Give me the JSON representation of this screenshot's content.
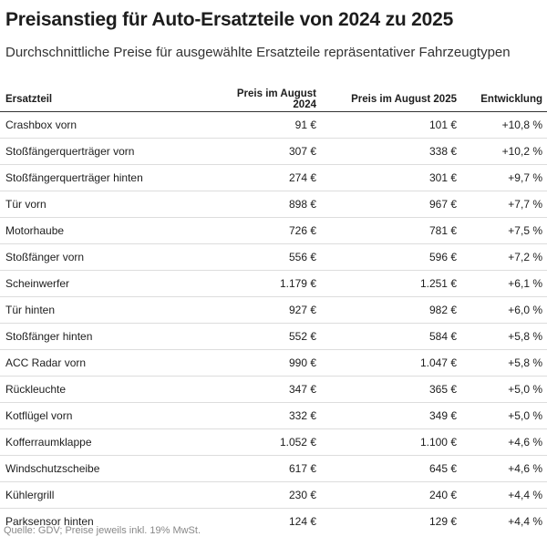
{
  "header": {
    "title": "Preisanstieg für Auto-Ersatzteile von 2024 zu 2025",
    "subtitle": "Durchschnittliche Preise für ausgewählte Ersatzteile repräsentativer Fahrzeugtypen"
  },
  "table": {
    "columns": [
      "Ersatzteil",
      "Preis im August 2024",
      "Preis im August 2025",
      "Entwicklung"
    ],
    "rows": [
      [
        "Crashbox vorn",
        "91 €",
        "101 €",
        "+10,8 %"
      ],
      [
        "Stoßfängerquerträger vorn",
        "307 €",
        "338 €",
        "+10,2 %"
      ],
      [
        "Stoßfängerquerträger hinten",
        "274 €",
        "301 €",
        "+9,7 %"
      ],
      [
        "Tür vorn",
        "898 €",
        "967 €",
        "+7,7 %"
      ],
      [
        "Motorhaube",
        "726 €",
        "781 €",
        "+7,5 %"
      ],
      [
        "Stoßfänger vorn",
        "556 €",
        "596 €",
        "+7,2 %"
      ],
      [
        "Scheinwerfer",
        "1.179 €",
        "1.251 €",
        "+6,1 %"
      ],
      [
        "Tür hinten",
        "927 €",
        "982 €",
        "+6,0 %"
      ],
      [
        "Stoßfänger hinten",
        "552 €",
        "584 €",
        "+5,8 %"
      ],
      [
        "ACC Radar vorn",
        "990 €",
        "1.047 €",
        "+5,8 %"
      ],
      [
        "Rückleuchte",
        "347 €",
        "365 €",
        "+5,0 %"
      ],
      [
        "Kotflügel vorn",
        "332 €",
        "349 €",
        "+5,0 %"
      ],
      [
        "Kofferraumklappe",
        "1.052 €",
        "1.100 €",
        "+4,6 %"
      ],
      [
        "Windschutzscheibe",
        "617 €",
        "645 €",
        "+4,6 %"
      ],
      [
        "Kühlergrill",
        "230 €",
        "240 €",
        "+4,4 %"
      ],
      [
        "Parksensor hinten",
        "124 €",
        "129 €",
        "+4,4 %"
      ]
    ]
  },
  "footer": {
    "source": "Quelle: GDV; Preise jeweils inkl. 19% MwSt."
  }
}
